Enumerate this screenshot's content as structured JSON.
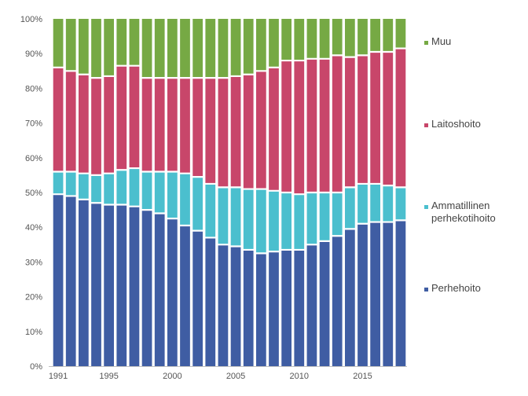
{
  "chart_data": {
    "type": "bar",
    "stacked": true,
    "normalized": true,
    "title": "",
    "xlabel": "",
    "ylabel": "",
    "ylim": [
      0,
      100
    ],
    "y_ticks": [
      "0%",
      "10%",
      "20%",
      "30%",
      "40%",
      "50%",
      "60%",
      "70%",
      "80%",
      "90%",
      "100%"
    ],
    "x_tick_labels": [
      "1991",
      "1995",
      "2000",
      "2005",
      "2010",
      "2015"
    ],
    "categories": [
      "1991",
      "1992",
      "1993",
      "1994",
      "1995",
      "1996",
      "1997",
      "1998",
      "1999",
      "2000",
      "2001",
      "2002",
      "2003",
      "2004",
      "2005",
      "2006",
      "2007",
      "2008",
      "2009",
      "2010",
      "2011",
      "2012",
      "2013",
      "2014",
      "2015",
      "2016",
      "2017",
      "2018"
    ],
    "series": [
      {
        "name": "Perhehoito",
        "color": "#3f5da3",
        "values": [
          49.5,
          49,
          48,
          47,
          46.5,
          46.5,
          46,
          45,
          44,
          42.5,
          40.5,
          39,
          37,
          35,
          34.5,
          33.5,
          32.5,
          33,
          33.5,
          33.5,
          35,
          36,
          37.5,
          39.5,
          41,
          41.5,
          41.5,
          42
        ]
      },
      {
        "name": "Ammatillinen perhekotihoito",
        "color": "#4bbfce",
        "values": [
          6.5,
          7,
          7.5,
          8,
          9,
          10,
          11,
          11,
          12,
          13.5,
          15,
          15.5,
          15.5,
          16.5,
          17,
          17.5,
          18.5,
          17.5,
          16.5,
          16,
          15,
          14,
          12.5,
          12,
          11.5,
          11,
          10.5,
          9.5
        ]
      },
      {
        "name": "Laitoshoito",
        "color": "#c8466a",
        "values": [
          30,
          29,
          28.5,
          28,
          28,
          30,
          29.5,
          27,
          27,
          27,
          27.5,
          28.5,
          30.5,
          31.5,
          32,
          33,
          34,
          35.5,
          38,
          38.5,
          38.5,
          38.5,
          39.5,
          37.5,
          37,
          38,
          38.5,
          40
        ]
      },
      {
        "name": "Muu",
        "color": "#76a944",
        "values": [
          14,
          15,
          16,
          17,
          16.5,
          13.5,
          13.5,
          17,
          17,
          17,
          17,
          17,
          17,
          17,
          16.5,
          16,
          15,
          14,
          12,
          12,
          11.5,
          11.5,
          10.5,
          11,
          10.5,
          9.5,
          9.5,
          8.5
        ]
      }
    ],
    "legend": {
      "placement": "right",
      "items": [
        {
          "lines": [
            "Muu"
          ],
          "color": "#76a944"
        },
        {
          "lines": [
            "Laitoshoito"
          ],
          "color": "#c8466a"
        },
        {
          "lines": [
            "Ammatillinen",
            "perhekotihoito"
          ],
          "color": "#4bbfce"
        },
        {
          "lines": [
            "Perhehoito"
          ],
          "color": "#3f5da3"
        }
      ]
    },
    "grid": false
  }
}
